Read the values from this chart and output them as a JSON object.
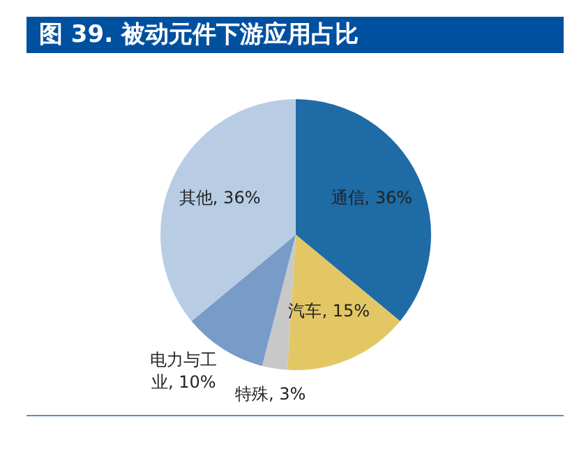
{
  "chart_data": {
    "type": "pie",
    "title": "图 39. 被动元件下游应用占比",
    "categories": [
      "通信",
      "汽车",
      "特殊",
      "电力与工业",
      "其他"
    ],
    "values": [
      36,
      15,
      3,
      10,
      36
    ],
    "value_labels": [
      "36%",
      "15%",
      "3%",
      "10%",
      "36%"
    ],
    "colors": [
      "#1e6ba6",
      "#e3c765",
      "#c8c8c8",
      "#789bc8",
      "#b8cce4"
    ],
    "legend": false
  }
}
